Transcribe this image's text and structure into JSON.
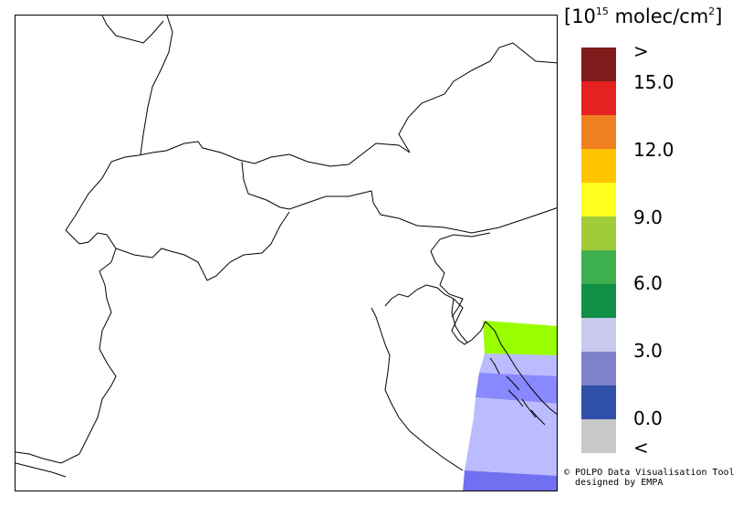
{
  "legend": {
    "unit_prefix": "[10",
    "unit_exp": "15",
    "unit_suffix": " molec/cm",
    "unit_sq": "2",
    "unit_close": "]",
    "colors": [
      "#7f1d1d",
      "#e52121",
      "#f07f22",
      "#ffc400",
      "#ffff20",
      "#a0cc3a",
      "#3fb04e",
      "#0f9046",
      "#c9c9ee",
      "#7f82c8",
      "#2f4fa8",
      "#c8c8c8"
    ],
    "labels": [
      ">",
      "15.0",
      "12.0",
      "9.0",
      "6.0",
      "3.0",
      "0.0",
      "<"
    ]
  },
  "credit": {
    "line1": "© POLPO Data Visualisation Tool",
    "line2": "  designed by EMPA"
  },
  "map": {
    "overlay_colors": {
      "green": "#99ff00",
      "light_blue": "#bbbbff",
      "mid_blue": "#8888ff",
      "dark_blue": "#7070f0"
    }
  }
}
